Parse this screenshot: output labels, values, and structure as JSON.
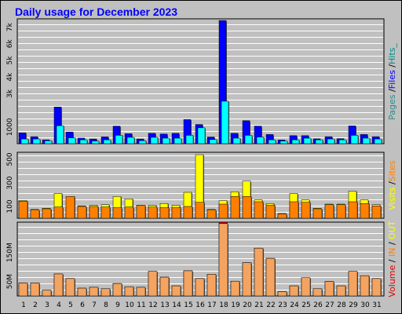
{
  "title": "Daily usage for December 2023",
  "chart_data": {
    "type": "bar",
    "categories": [
      "1",
      "2",
      "3",
      "4",
      "5",
      "6",
      "7",
      "8",
      "9",
      "10",
      "11",
      "12",
      "13",
      "14",
      "15",
      "16",
      "17",
      "18",
      "19",
      "20",
      "21",
      "22",
      "23",
      "24",
      "25",
      "26",
      "27",
      "28",
      "29",
      "30",
      "31"
    ],
    "weekend_days": [
      "2",
      "3",
      "9",
      "10",
      "16",
      "17",
      "23",
      "24",
      "30",
      "31"
    ],
    "panels": [
      {
        "name": "hits",
        "ylim": [
          0,
          7500
        ],
        "ytick_labels": [
          {
            "label": "1000",
            "value": 1000
          },
          {
            "label": "3k",
            "value": 3000
          },
          {
            "label": "4k",
            "value": 4000
          },
          {
            "label": "5k",
            "value": 5000
          },
          {
            "label": "6k",
            "value": 6000
          },
          {
            "label": "7k",
            "value": 7000
          }
        ],
        "series": [
          {
            "name": "Pages",
            "color": "#2e8b8b",
            "values": [
              0,
              0,
              0,
              0,
              0,
              0,
              0,
              0,
              0,
              0,
              0,
              0,
              0,
              0,
              0,
              0,
              0,
              0,
              0,
              0,
              0,
              0,
              0,
              0,
              0,
              0,
              0,
              0,
              0,
              0,
              0
            ]
          },
          {
            "name": "Files",
            "color": "#0000ff",
            "values": [
              650,
              420,
              230,
              2200,
              700,
              330,
              280,
              410,
              1050,
              600,
              280,
              620,
              580,
              620,
              1450,
              1150,
              400,
              7400,
              620,
              1380,
              1050,
              550,
              220,
              480,
              480,
              290,
              420,
              300,
              1070,
              550,
              420
            ]
          },
          {
            "name": "Hits",
            "color": "#00ffff",
            "values": [
              280,
              280,
              170,
              1080,
              350,
              230,
              160,
              230,
              500,
              380,
              180,
              380,
              330,
              330,
              500,
              950,
              250,
              2550,
              330,
              500,
              400,
              230,
              160,
              230,
              330,
              230,
              280,
              230,
              500,
              330,
              280
            ]
          }
        ]
      },
      {
        "name": "visits",
        "ylim": [
          0,
          560
        ],
        "ytick_labels": [
          {
            "label": "100",
            "value": 100
          },
          {
            "label": "300",
            "value": 300
          },
          {
            "label": "500",
            "value": 500
          }
        ],
        "series": [
          {
            "name": "Visits",
            "color": "#ffff00",
            "values": [
              150,
              75,
              85,
              210,
              100,
              105,
              110,
              115,
              185,
              165,
              110,
              110,
              125,
              110,
              220,
              540,
              75,
              150,
              225,
              315,
              155,
              125,
              40,
              210,
              155,
              85,
              120,
              120,
              230,
              155,
              115
            ]
          },
          {
            "name": "Sites",
            "color": "#ff8000",
            "values": [
              145,
              70,
              80,
              95,
              185,
              100,
              100,
              95,
              90,
              95,
              110,
              95,
              90,
              90,
              100,
              135,
              70,
              120,
              185,
              185,
              140,
              110,
              35,
              140,
              135,
              80,
              115,
              115,
              140,
              125,
              105
            ]
          }
        ]
      },
      {
        "name": "volume",
        "ylim": [
          0,
          255
        ],
        "ytick_labels": [
          {
            "label": "50M",
            "value": 50
          },
          {
            "label": "150M",
            "value": 150
          }
        ],
        "series": [
          {
            "name": "Volume",
            "color": "#dc0000",
            "values": [
              45,
              45,
              20,
              76,
              60,
              27,
              30,
              25,
              43,
              32,
              30,
              85,
              65,
              35,
              87,
              60,
              75,
              255,
              51,
              115,
              165,
              130,
              15,
              35,
              63,
              25,
              50,
              35,
              85,
              70,
              60
            ]
          },
          {
            "name": "IN",
            "color": "#ff8000",
            "values": [
              0,
              0,
              0,
              0,
              0,
              0,
              0,
              0,
              0,
              0,
              0,
              0,
              0,
              0,
              0,
              0,
              0,
              0,
              0,
              0,
              0,
              0,
              0,
              0,
              0,
              0,
              0,
              0,
              0,
              0,
              0
            ]
          },
          {
            "name": "OUT",
            "color": "#f4a460",
            "values": [
              45,
              45,
              20,
              76,
              60,
              27,
              30,
              25,
              43,
              32,
              30,
              85,
              65,
              35,
              87,
              60,
              75,
              250,
              51,
              115,
              165,
              130,
              15,
              35,
              63,
              25,
              50,
              35,
              85,
              70,
              60
            ]
          }
        ]
      }
    ],
    "colors": {
      "weekday_label": "#000000",
      "weekend_label": "#008000",
      "background": "#c0c0c0",
      "plot_background": "#c0c0c0"
    }
  },
  "right_labels": {
    "hits": [
      {
        "text": "Pages",
        "color": "#2e8b8b"
      },
      {
        "text": " /",
        "color": "#000000"
      },
      {
        "text": "Files",
        "color": "#0000ff"
      },
      {
        "text": " /",
        "color": "#000000"
      },
      {
        "text": "Hits_",
        "color": "#008b8b"
      }
    ],
    "visits": [
      {
        "text": "Visits",
        "color": "#ffff00"
      },
      {
        "text": " /",
        "color": "#000000"
      },
      {
        "text": "Sites",
        "color": "#ff8000"
      }
    ],
    "volume": [
      {
        "text": "Volume",
        "color": "#dc0000"
      },
      {
        "text": " / ",
        "color": "#000000"
      },
      {
        "text": "IN",
        "color": "#ff8000"
      },
      {
        "text": " / ",
        "color": "#000000"
      },
      {
        "text": "OUT",
        "color": "#ffff00"
      }
    ]
  }
}
